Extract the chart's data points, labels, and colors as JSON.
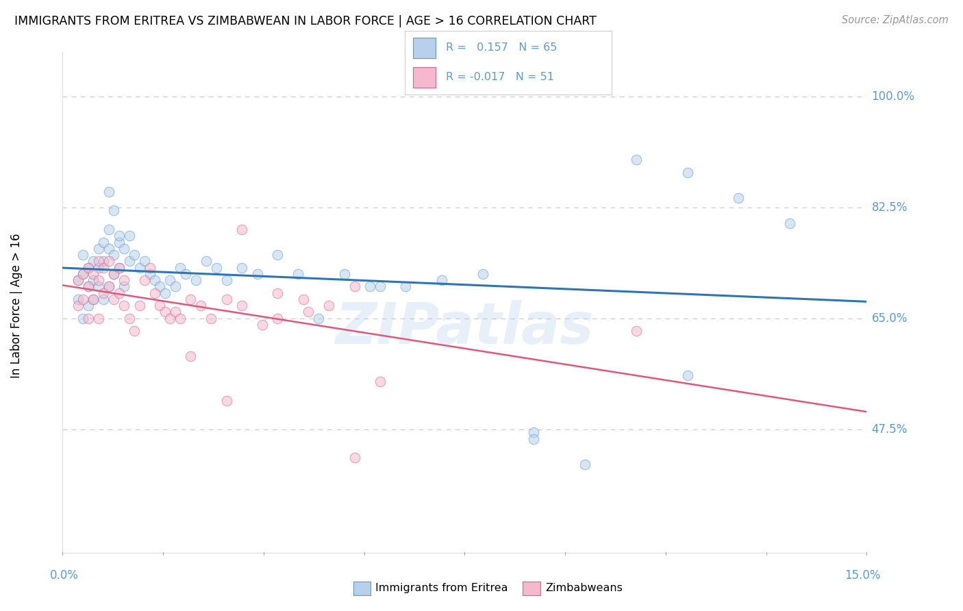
{
  "title": "IMMIGRANTS FROM ERITREA VS ZIMBABWEAN IN LABOR FORCE | AGE > 16 CORRELATION CHART",
  "source": "Source: ZipAtlas.com",
  "ylabel": "In Labor Force | Age > 16",
  "xlim": [
    -0.002,
    0.155
  ],
  "ylim": [
    0.28,
    1.07
  ],
  "yticks": [
    0.475,
    0.65,
    0.825,
    1.0
  ],
  "ytick_labels": [
    "47.5%",
    "65.0%",
    "82.5%",
    "100.0%"
  ],
  "axis_color": "#5b9bd5",
  "grid_color": "#c8c8c8",
  "background_color": "#ffffff",
  "watermark": "ZIPatlas",
  "eritrea_color": "#b8d0ea",
  "eritrea_edge": "#5b9bd5",
  "zimbabwe_color": "#f5b8cc",
  "zimbabwe_edge": "#d06888",
  "eritrea_line_color": "#2e75b6",
  "zimbabwe_line_color": "#e05878",
  "marker_size": 110,
  "alpha": 0.55,
  "R_eritrea": 0.157,
  "N_eritrea": 65,
  "R_zimbabwe": -0.017,
  "N_zimbabwe": 51,
  "eritrea_x": [
    0.001,
    0.001,
    0.002,
    0.002,
    0.002,
    0.003,
    0.003,
    0.003,
    0.004,
    0.004,
    0.004,
    0.005,
    0.005,
    0.005,
    0.006,
    0.006,
    0.006,
    0.007,
    0.007,
    0.007,
    0.008,
    0.008,
    0.009,
    0.009,
    0.01,
    0.01,
    0.011,
    0.011,
    0.012,
    0.013,
    0.014,
    0.015,
    0.016,
    0.017,
    0.018,
    0.019,
    0.02,
    0.021,
    0.022,
    0.024,
    0.026,
    0.028,
    0.03,
    0.033,
    0.036,
    0.04,
    0.044,
    0.048,
    0.053,
    0.058,
    0.065,
    0.072,
    0.08,
    0.09,
    0.1,
    0.11,
    0.12,
    0.13,
    0.007,
    0.008,
    0.009,
    0.06,
    0.09,
    0.12,
    0.14
  ],
  "eritrea_y": [
    0.71,
    0.68,
    0.72,
    0.75,
    0.65,
    0.73,
    0.7,
    0.67,
    0.74,
    0.71,
    0.68,
    0.76,
    0.73,
    0.7,
    0.77,
    0.74,
    0.68,
    0.79,
    0.76,
    0.7,
    0.75,
    0.72,
    0.77,
    0.73,
    0.76,
    0.7,
    0.78,
    0.74,
    0.75,
    0.73,
    0.74,
    0.72,
    0.71,
    0.7,
    0.69,
    0.71,
    0.7,
    0.73,
    0.72,
    0.71,
    0.74,
    0.73,
    0.71,
    0.73,
    0.72,
    0.75,
    0.72,
    0.65,
    0.72,
    0.7,
    0.7,
    0.71,
    0.72,
    0.47,
    0.42,
    0.9,
    0.88,
    0.84,
    0.85,
    0.82,
    0.78,
    0.7,
    0.46,
    0.56,
    0.8
  ],
  "zimbabwe_x": [
    0.001,
    0.001,
    0.002,
    0.002,
    0.003,
    0.003,
    0.003,
    0.004,
    0.004,
    0.005,
    0.005,
    0.005,
    0.006,
    0.006,
    0.007,
    0.007,
    0.008,
    0.008,
    0.009,
    0.009,
    0.01,
    0.01,
    0.011,
    0.012,
    0.013,
    0.014,
    0.015,
    0.016,
    0.017,
    0.018,
    0.019,
    0.02,
    0.021,
    0.023,
    0.025,
    0.027,
    0.03,
    0.033,
    0.037,
    0.04,
    0.045,
    0.05,
    0.06,
    0.033,
    0.046,
    0.055,
    0.11,
    0.03,
    0.055,
    0.023,
    0.04
  ],
  "zimbabwe_y": [
    0.71,
    0.67,
    0.72,
    0.68,
    0.73,
    0.7,
    0.65,
    0.72,
    0.68,
    0.74,
    0.71,
    0.65,
    0.73,
    0.69,
    0.74,
    0.7,
    0.72,
    0.68,
    0.73,
    0.69,
    0.71,
    0.67,
    0.65,
    0.63,
    0.67,
    0.71,
    0.73,
    0.69,
    0.67,
    0.66,
    0.65,
    0.66,
    0.65,
    0.68,
    0.67,
    0.65,
    0.68,
    0.67,
    0.64,
    0.69,
    0.68,
    0.67,
    0.55,
    0.79,
    0.66,
    0.7,
    0.63,
    0.52,
    0.43,
    0.59,
    0.65
  ]
}
